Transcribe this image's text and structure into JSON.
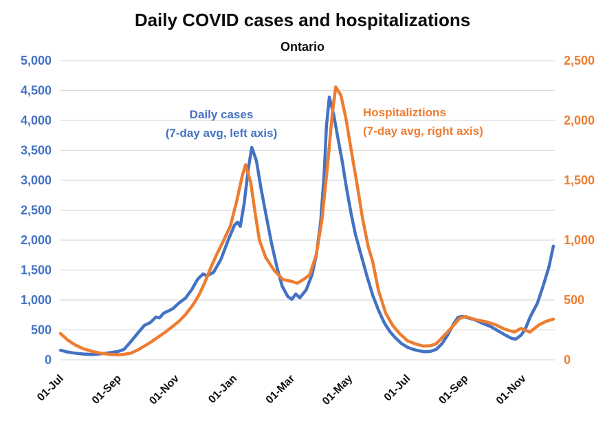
{
  "title": "Daily COVID cases and hospitalizations",
  "subtitle": "Ontario",
  "colors": {
    "cases_line": "#4472C4",
    "hospitalizations_line": "#ED7D31",
    "gridline": "#D9D9D9",
    "axis_text_left": "#4472C4",
    "axis_text_right": "#ED7D31",
    "x_label_text": "#111111",
    "title_text": "#0d0d0d"
  },
  "annotations": {
    "cases_line1": "Daily cases",
    "cases_line2": "(7-day avg, left axis)",
    "hosp_line1": "Hospitaliztions",
    "hosp_line2": "(7-day avg, right axis)"
  },
  "chart_data": {
    "type": "line",
    "title": "Daily COVID cases and hospitalizations",
    "subtitle": "Ontario",
    "grid": "horizontal",
    "legend": "inline text annotations, no legend box",
    "x_axis": {
      "unit": "months since 2020-07-01",
      "range_months": [
        0,
        17.1
      ],
      "tick_positions_months": [
        0,
        2,
        4,
        6,
        8,
        10,
        12,
        14,
        16
      ],
      "tick_labels": [
        "01-Jul",
        "01-Sep",
        "01-Nov",
        "01-Jan",
        "01-Mar",
        "01-May",
        "01-Jul",
        "01-Sep",
        "01-Nov"
      ],
      "label_rotation_deg": 45
    },
    "y_axis_left": {
      "range": [
        0,
        5000
      ],
      "tick_step": 500,
      "tick_labels": [
        "0",
        "500",
        "1,000",
        "1,500",
        "2,000",
        "2,500",
        "3,000",
        "3,500",
        "4,000",
        "4,500",
        "5,000"
      ],
      "label_color": "#4472C4"
    },
    "y_axis_right": {
      "range": [
        0,
        2500
      ],
      "tick_step": 500,
      "tick_labels": [
        "0",
        "500",
        "1,000",
        "1,500",
        "2,000",
        "2,500"
      ],
      "label_color": "#ED7D31"
    },
    "series": [
      {
        "name": "Daily cases (7-day avg, left axis)",
        "axis": "left",
        "color": "#4472C4",
        "points": [
          [
            0.0,
            160
          ],
          [
            0.25,
            130
          ],
          [
            0.5,
            112
          ],
          [
            0.8,
            96
          ],
          [
            1.1,
            90
          ],
          [
            1.4,
            100
          ],
          [
            1.7,
            118
          ],
          [
            2.0,
            140
          ],
          [
            2.2,
            175
          ],
          [
            2.45,
            315
          ],
          [
            2.7,
            460
          ],
          [
            2.9,
            575
          ],
          [
            3.1,
            620
          ],
          [
            3.3,
            715
          ],
          [
            3.42,
            700
          ],
          [
            3.57,
            780
          ],
          [
            3.75,
            820
          ],
          [
            3.9,
            860
          ],
          [
            4.1,
            950
          ],
          [
            4.33,
            1035
          ],
          [
            4.55,
            1180
          ],
          [
            4.75,
            1350
          ],
          [
            4.93,
            1435
          ],
          [
            5.08,
            1405
          ],
          [
            5.3,
            1465
          ],
          [
            5.55,
            1680
          ],
          [
            5.8,
            2000
          ],
          [
            6.02,
            2250
          ],
          [
            6.12,
            2300
          ],
          [
            6.22,
            2230
          ],
          [
            6.35,
            2600
          ],
          [
            6.5,
            3200
          ],
          [
            6.62,
            3550
          ],
          [
            6.78,
            3320
          ],
          [
            6.93,
            2880
          ],
          [
            7.1,
            2450
          ],
          [
            7.3,
            1950
          ],
          [
            7.5,
            1520
          ],
          [
            7.67,
            1230
          ],
          [
            7.86,
            1060
          ],
          [
            8.0,
            1010
          ],
          [
            8.14,
            1100
          ],
          [
            8.28,
            1035
          ],
          [
            8.5,
            1170
          ],
          [
            8.7,
            1420
          ],
          [
            8.85,
            1750
          ],
          [
            9.0,
            2300
          ],
          [
            9.12,
            3100
          ],
          [
            9.2,
            3900
          ],
          [
            9.3,
            4390
          ],
          [
            9.45,
            4100
          ],
          [
            9.6,
            3700
          ],
          [
            9.75,
            3300
          ],
          [
            9.9,
            2850
          ],
          [
            10.05,
            2450
          ],
          [
            10.2,
            2100
          ],
          [
            10.4,
            1750
          ],
          [
            10.6,
            1400
          ],
          [
            10.8,
            1080
          ],
          [
            11.0,
            830
          ],
          [
            11.2,
            620
          ],
          [
            11.4,
            470
          ],
          [
            11.6,
            360
          ],
          [
            11.8,
            270
          ],
          [
            12.0,
            210
          ],
          [
            12.2,
            175
          ],
          [
            12.4,
            150
          ],
          [
            12.6,
            135
          ],
          [
            12.8,
            140
          ],
          [
            13.0,
            175
          ],
          [
            13.2,
            270
          ],
          [
            13.4,
            420
          ],
          [
            13.6,
            600
          ],
          [
            13.75,
            710
          ],
          [
            13.9,
            725
          ],
          [
            14.1,
            700
          ],
          [
            14.35,
            665
          ],
          [
            14.6,
            610
          ],
          [
            14.9,
            550
          ],
          [
            15.15,
            480
          ],
          [
            15.4,
            410
          ],
          [
            15.6,
            360
          ],
          [
            15.75,
            345
          ],
          [
            15.95,
            420
          ],
          [
            16.1,
            540
          ],
          [
            16.25,
            720
          ],
          [
            16.5,
            950
          ],
          [
            16.7,
            1240
          ],
          [
            16.9,
            1560
          ],
          [
            17.05,
            1900
          ]
        ]
      },
      {
        "name": "Hospitaliztions (7-day avg, right axis)",
        "axis": "right",
        "color": "#ED7D31",
        "points": [
          [
            0.0,
            220
          ],
          [
            0.25,
            165
          ],
          [
            0.5,
            125
          ],
          [
            0.8,
            92
          ],
          [
            1.1,
            70
          ],
          [
            1.4,
            55
          ],
          [
            1.7,
            46
          ],
          [
            2.0,
            42
          ],
          [
            2.2,
            46
          ],
          [
            2.45,
            57
          ],
          [
            2.7,
            86
          ],
          [
            2.9,
            115
          ],
          [
            3.14,
            150
          ],
          [
            3.38,
            190
          ],
          [
            3.62,
            230
          ],
          [
            3.86,
            276
          ],
          [
            4.1,
            322
          ],
          [
            4.33,
            380
          ],
          [
            4.57,
            455
          ],
          [
            4.8,
            545
          ],
          [
            5.0,
            650
          ],
          [
            5.2,
            770
          ],
          [
            5.4,
            880
          ],
          [
            5.62,
            985
          ],
          [
            5.88,
            1120
          ],
          [
            6.1,
            1330
          ],
          [
            6.28,
            1530
          ],
          [
            6.4,
            1630
          ],
          [
            6.58,
            1480
          ],
          [
            6.75,
            1200
          ],
          [
            6.88,
            1000
          ],
          [
            7.1,
            855
          ],
          [
            7.4,
            745
          ],
          [
            7.7,
            670
          ],
          [
            8.0,
            655
          ],
          [
            8.19,
            640
          ],
          [
            8.4,
            670
          ],
          [
            8.62,
            710
          ],
          [
            8.85,
            880
          ],
          [
            9.05,
            1180
          ],
          [
            9.25,
            1650
          ],
          [
            9.4,
            2050
          ],
          [
            9.52,
            2280
          ],
          [
            9.7,
            2210
          ],
          [
            9.88,
            2010
          ],
          [
            10.05,
            1760
          ],
          [
            10.25,
            1480
          ],
          [
            10.45,
            1180
          ],
          [
            10.65,
            940
          ],
          [
            10.8,
            820
          ],
          [
            11.0,
            580
          ],
          [
            11.25,
            390
          ],
          [
            11.5,
            285
          ],
          [
            11.75,
            215
          ],
          [
            12.0,
            160
          ],
          [
            12.25,
            135
          ],
          [
            12.55,
            115
          ],
          [
            12.8,
            118
          ],
          [
            13.0,
            135
          ],
          [
            13.15,
            172
          ],
          [
            13.45,
            247
          ],
          [
            13.8,
            345
          ],
          [
            14.0,
            362
          ],
          [
            14.4,
            333
          ],
          [
            14.75,
            316
          ],
          [
            15.05,
            293
          ],
          [
            15.35,
            258
          ],
          [
            15.7,
            232
          ],
          [
            15.93,
            262
          ],
          [
            16.24,
            232
          ],
          [
            16.55,
            292
          ],
          [
            16.8,
            322
          ],
          [
            17.05,
            340
          ]
        ]
      }
    ]
  }
}
